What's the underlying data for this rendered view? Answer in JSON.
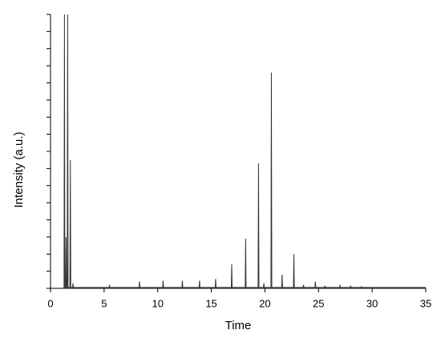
{
  "chart_data": {
    "type": "line",
    "x_label": "Time",
    "y_label": "Intensity (a.u.)",
    "xlim": [
      0,
      35
    ],
    "xticks": [
      0,
      5,
      10,
      15,
      20,
      25,
      30,
      35
    ],
    "ylim": [
      0,
      16
    ],
    "yticks": [
      0,
      1,
      2,
      3,
      4,
      5,
      6,
      7,
      8,
      9,
      10,
      11,
      12,
      13,
      14,
      15,
      16
    ],
    "grid": false,
    "series": [
      {
        "color": "#333333",
        "x": [
          1.2,
          1.26,
          1.3,
          1.34,
          1.41,
          1.45,
          1.49,
          1.56,
          1.6,
          1.64,
          1.81,
          1.85,
          1.89,
          2.06,
          2.1,
          2.14,
          5.46,
          5.5,
          5.54,
          8.26,
          8.3,
          8.34,
          10.46,
          10.5,
          10.54,
          12.26,
          12.3,
          12.34,
          13.86,
          13.9,
          13.94,
          15.36,
          15.4,
          15.44,
          16.86,
          16.9,
          16.94,
          18.16,
          18.2,
          18.24,
          19.36,
          19.4,
          19.44,
          19.86,
          19.9,
          19.94,
          20.56,
          20.6,
          20.64,
          21.56,
          21.6,
          21.64,
          22.66,
          22.7,
          22.74,
          23.56,
          23.6,
          23.64,
          24.66,
          24.7,
          24.74,
          25.56,
          25.6,
          25.64,
          26.96,
          27,
          27.04,
          27.96,
          28,
          28.04,
          28.96,
          29,
          29.04,
          35
        ],
        "values": [
          0.05,
          0.05,
          16,
          0.05,
          0.05,
          3,
          0.05,
          0.05,
          16,
          0.05,
          0.05,
          7.5,
          0.05,
          0.05,
          0.3,
          0.05,
          0.05,
          0.2,
          0.05,
          0.05,
          0.4,
          0.05,
          0.05,
          0.45,
          0.05,
          0.05,
          0.45,
          0.05,
          0.05,
          0.45,
          0.05,
          0.05,
          0.55,
          0.05,
          0.05,
          1.4,
          0.05,
          0.05,
          2.9,
          0.05,
          0.05,
          7.3,
          0.05,
          0.05,
          0.3,
          0.05,
          0.05,
          12.6,
          0.05,
          0.05,
          0.8,
          0.05,
          0.05,
          2.0,
          0.05,
          0.05,
          0.2,
          0.05,
          0.05,
          0.4,
          0.05,
          0.05,
          0.15,
          0.05,
          0.05,
          0.2,
          0.05,
          0.05,
          0.15,
          0.05,
          0.05,
          0.1,
          0.05,
          0.05
        ]
      }
    ]
  }
}
